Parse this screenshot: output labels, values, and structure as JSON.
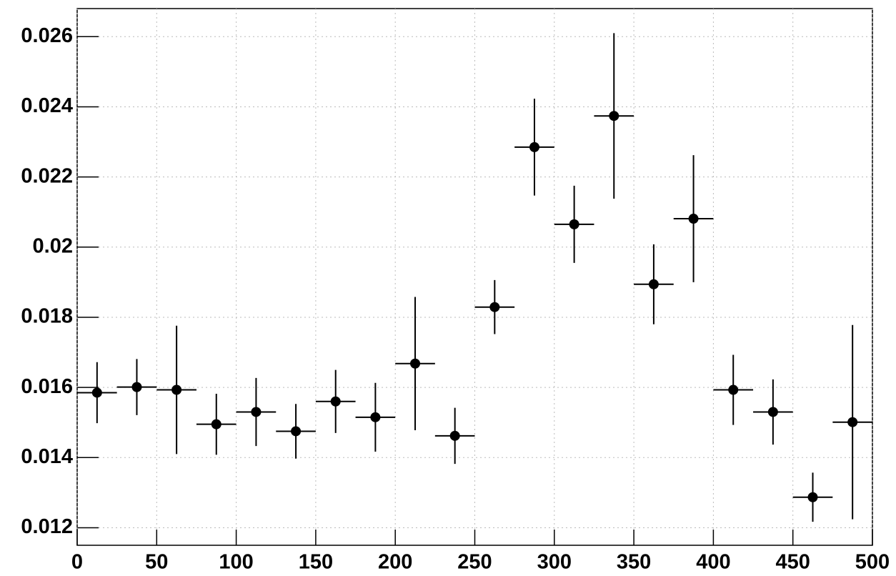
{
  "chart_data": {
    "type": "scatter",
    "x": [
      12.5,
      37.5,
      62.5,
      87.5,
      112.5,
      137.5,
      162.5,
      187.5,
      212.5,
      237.5,
      262.5,
      287.5,
      312.5,
      337.5,
      362.5,
      387.5,
      412.5,
      437.5,
      462.5,
      487.5
    ],
    "xerr": [
      12.5,
      12.5,
      12.5,
      12.5,
      12.5,
      12.5,
      12.5,
      12.5,
      12.5,
      12.5,
      12.5,
      12.5,
      12.5,
      12.5,
      12.5,
      12.5,
      12.5,
      12.5,
      12.5,
      12.5
    ],
    "values": [
      0.01585,
      0.01601,
      0.01593,
      0.01495,
      0.0153,
      0.01475,
      0.0156,
      0.01515,
      0.01668,
      0.01462,
      0.01829,
      0.02285,
      0.02065,
      0.02374,
      0.01894,
      0.02081,
      0.01593,
      0.0153,
      0.01287,
      0.01501
    ],
    "yerr": [
      0.00087,
      0.0008,
      0.00183,
      0.00087,
      0.00097,
      0.00078,
      0.0009,
      0.00098,
      0.0019,
      0.0008,
      0.00077,
      0.00138,
      0.0011,
      0.00236,
      0.00114,
      0.00181,
      0.001,
      0.00093,
      0.0007,
      0.00277
    ],
    "color": "#000000",
    "xlim": [
      0,
      500
    ],
    "xticks": [
      0,
      50,
      100,
      150,
      200,
      250,
      300,
      350,
      400,
      450,
      500
    ],
    "ylim": [
      0.0115,
      0.0268
    ],
    "yticks": [
      0.012,
      0.014,
      0.016,
      0.018,
      0.02,
      0.022,
      0.024,
      0.026
    ],
    "grid": true
  }
}
